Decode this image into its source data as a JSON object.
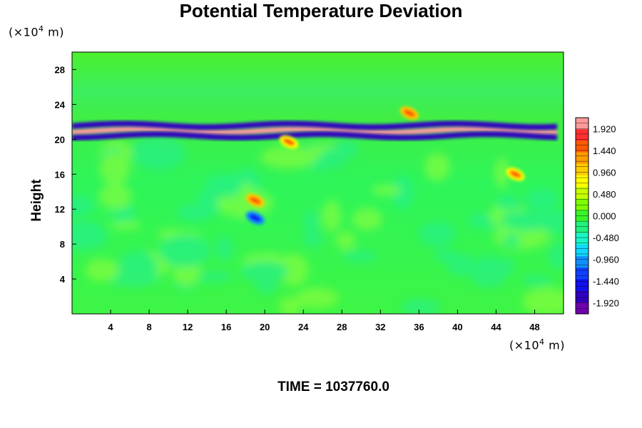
{
  "chart_data": {
    "type": "heatmap",
    "title": "Potential Temperature Deviation",
    "ylabel": "Height",
    "x_unit": {
      "prefix": "(×10",
      "exp": "4",
      "suffix": " m)"
    },
    "y_unit": {
      "prefix": "(×10",
      "exp": "4",
      "suffix": " m)"
    },
    "xlim": [
      0,
      51
    ],
    "ylim": [
      0,
      30
    ],
    "x_ticks": [
      "4",
      "8",
      "12",
      "16",
      "20",
      "24",
      "28",
      "32",
      "36",
      "40",
      "44",
      "48"
    ],
    "y_ticks": [
      "4",
      "8",
      "12",
      "16",
      "20",
      "24",
      "28"
    ],
    "colorbar": {
      "range": [
        -2.16,
        2.16
      ],
      "labels": [
        "1.920",
        "1.440",
        "0.960",
        "0.480",
        "0.000",
        "-0.480",
        "-0.960",
        "-1.440",
        "-1.920"
      ]
    },
    "features": [
      {
        "kind": "band",
        "y_center": 21.0,
        "value": 2.0,
        "desc": "warm layer near 21"
      },
      {
        "kind": "band",
        "y_center": 20.4,
        "value": -1.9,
        "desc": "cold layer"
      },
      {
        "kind": "band",
        "y_center": 21.6,
        "value": -1.9,
        "desc": "cold layer"
      },
      {
        "kind": "blob",
        "x": 19.0,
        "y": 13.0,
        "value": 1.6
      },
      {
        "kind": "blob",
        "x": 46.0,
        "y": 16.0,
        "value": 1.4
      },
      {
        "kind": "blob",
        "x": 19.0,
        "y": 11.0,
        "value": -1.5
      },
      {
        "kind": "blob",
        "x": 35.0,
        "y": 23.0,
        "value": 1.5
      },
      {
        "kind": "blob",
        "x": 22.5,
        "y": 19.7,
        "value": 1.4
      }
    ]
  },
  "footer": {
    "time_label": "TIME = 1037760.0"
  }
}
